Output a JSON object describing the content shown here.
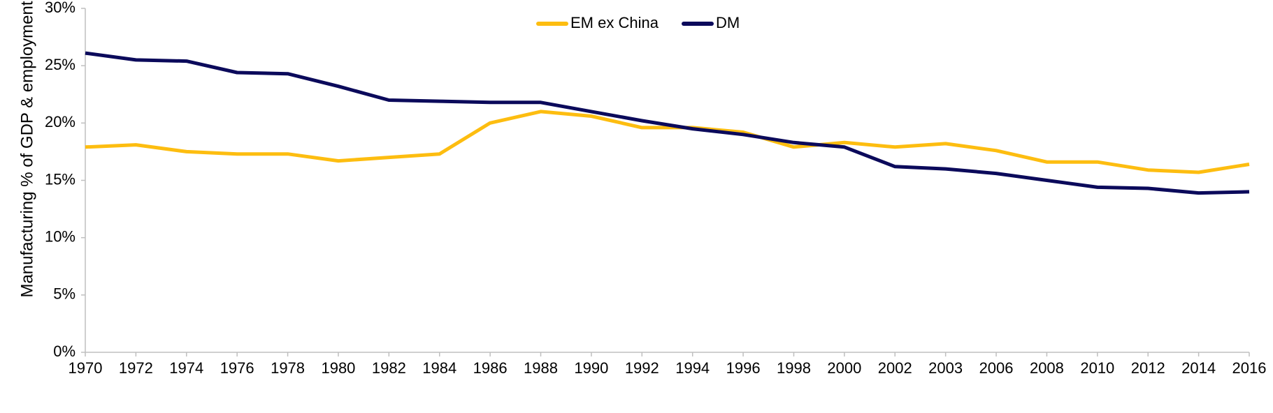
{
  "chart_data": {
    "type": "line",
    "title": "",
    "xlabel": "",
    "ylabel": "Manufacturing % of GDP & employment",
    "ylim": [
      0,
      30
    ],
    "y_ticks": [
      "0%",
      "5%",
      "10%",
      "15%",
      "20%",
      "25%",
      "30%"
    ],
    "y_tick_values": [
      0,
      5,
      10,
      15,
      20,
      25,
      30
    ],
    "categories": [
      "1970",
      "1972",
      "1974",
      "1976",
      "1978",
      "1980",
      "1982",
      "1984",
      "1986",
      "1988",
      "1990",
      "1992",
      "1994",
      "1996",
      "1998",
      "2000",
      "2002",
      "2003",
      "2006",
      "2008",
      "2010",
      "2012",
      "2014",
      "2016"
    ],
    "grid": false,
    "legend_position": "top-center",
    "series": [
      {
        "name": "EM ex China",
        "color": "#FDBD10",
        "values": [
          17.9,
          18.1,
          17.5,
          17.3,
          17.3,
          16.7,
          17.0,
          17.3,
          20.0,
          21.0,
          20.6,
          19.6,
          19.6,
          19.2,
          17.9,
          18.3,
          17.9,
          18.2,
          17.6,
          16.6,
          16.6,
          15.9,
          15.7,
          16.4
        ]
      },
      {
        "name": "DM",
        "color": "#0B0A5B",
        "values": [
          26.1,
          25.5,
          25.4,
          24.4,
          24.3,
          23.2,
          22.0,
          21.9,
          21.8,
          21.8,
          21.0,
          20.2,
          19.5,
          19.0,
          18.3,
          17.9,
          16.2,
          16.0,
          15.6,
          15.0,
          14.4,
          14.3,
          13.9,
          14.0
        ]
      }
    ]
  }
}
